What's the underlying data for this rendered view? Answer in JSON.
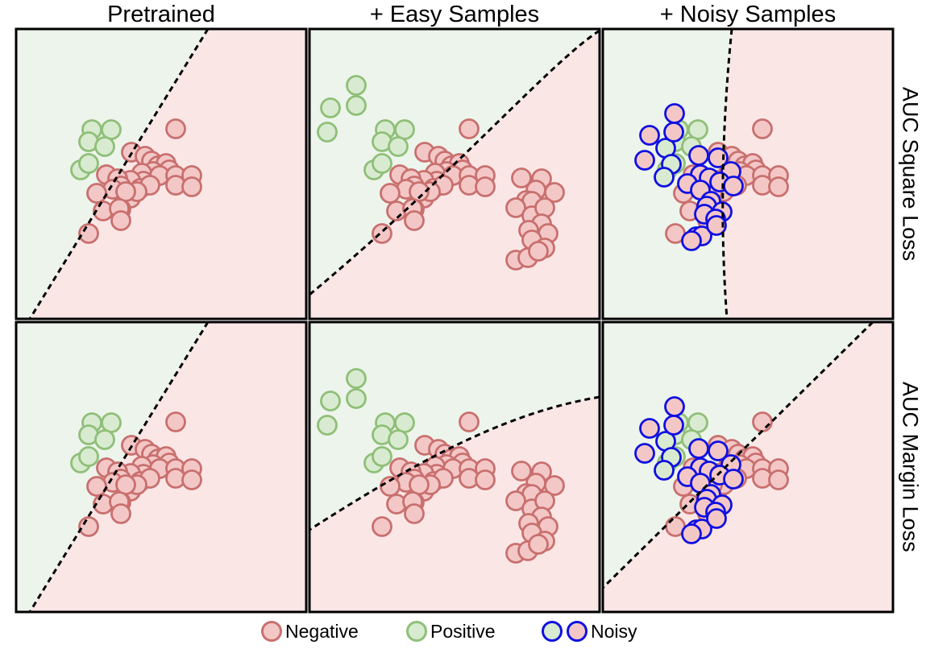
{
  "columns": [
    "Pretrained",
    "+ Easy Samples",
    "+ Noisy Samples"
  ],
  "rows": [
    "AUC Square Loss",
    "AUC Margin Loss"
  ],
  "legend": {
    "negative": "Negative",
    "positive": "Positive",
    "noisy": "Noisy"
  },
  "colors": {
    "negative_fill": "#f4c7c7",
    "negative_stroke": "#c8706e",
    "positive_fill": "#d8ebd0",
    "positive_stroke": "#8fbf78",
    "noisy_stroke": "#1010e0",
    "region_positive": "#edf4eb",
    "region_negative": "#fbe6e6"
  }
}
